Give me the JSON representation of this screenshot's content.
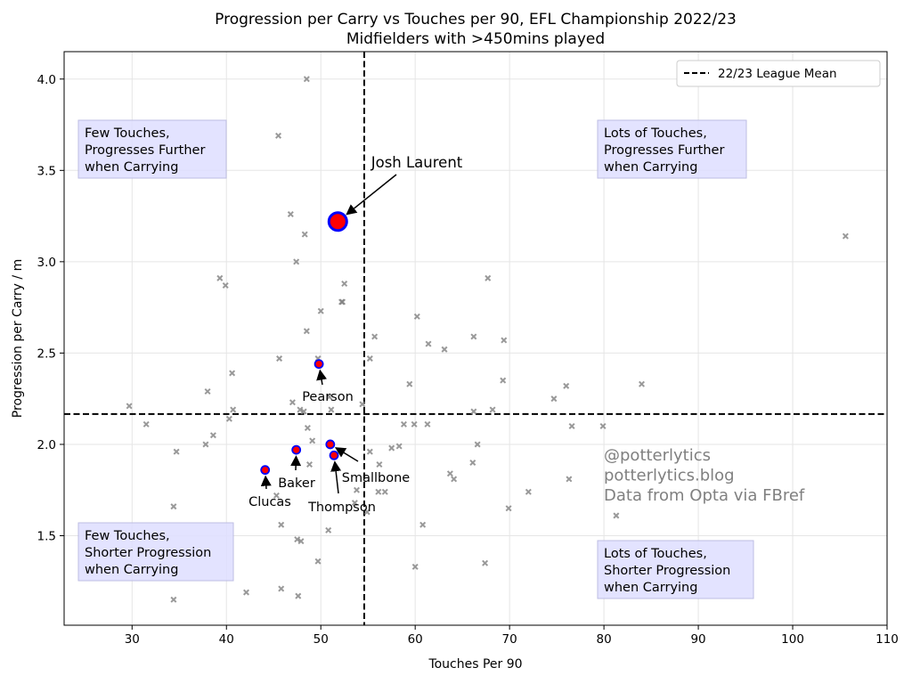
{
  "chart_data": {
    "type": "scatter",
    "title": "Progression per Carry vs Touches per 90, EFL Championship 2022/23",
    "subtitle": "Midfielders with >450mins played",
    "xlabel": "Touches Per 90",
    "ylabel": "Progression per Carry / m",
    "xlim": [
      22.8,
      110
    ],
    "ylim": [
      1.01,
      4.15
    ],
    "xticks": [
      30,
      40,
      50,
      60,
      70,
      80,
      90,
      100,
      110
    ],
    "yticks": [
      1.5,
      2.0,
      2.5,
      3.0,
      3.5,
      4.0
    ],
    "ytick_labels": [
      "1.5",
      "2.0",
      "2.5",
      "3.0",
      "3.5",
      "4.0"
    ],
    "grid": true,
    "legend": {
      "placement": "top-right",
      "entries": [
        "22/23 League Mean"
      ]
    },
    "mean_x": 54.6,
    "mean_y": 2.166,
    "colors": {
      "others": "#808080",
      "highlight_fill": "#ff0000",
      "highlight_edge": "#0000ff",
      "quadrant_box": "#e0e0ff"
    },
    "others": [
      [
        48.5,
        4.0
      ],
      [
        45.5,
        3.69
      ],
      [
        46.8,
        3.26
      ],
      [
        48.3,
        3.15
      ],
      [
        47.4,
        3.0
      ],
      [
        39.3,
        2.91
      ],
      [
        39.9,
        2.87
      ],
      [
        52.5,
        2.88
      ],
      [
        52.3,
        2.78
      ],
      [
        52.2,
        2.78
      ],
      [
        50.0,
        2.73
      ],
      [
        48.5,
        2.62
      ],
      [
        45.6,
        2.47
      ],
      [
        49.7,
        2.47
      ],
      [
        55.2,
        2.47
      ],
      [
        55.7,
        2.59
      ],
      [
        60.2,
        2.7
      ],
      [
        61.4,
        2.55
      ],
      [
        63.1,
        2.52
      ],
      [
        66.2,
        2.59
      ],
      [
        67.7,
        2.91
      ],
      [
        69.4,
        2.57
      ],
      [
        69.3,
        2.35
      ],
      [
        40.6,
        2.39
      ],
      [
        38.0,
        2.29
      ],
      [
        29.7,
        2.21
      ],
      [
        31.5,
        2.11
      ],
      [
        40.7,
        2.19
      ],
      [
        40.3,
        2.14
      ],
      [
        47.0,
        2.23
      ],
      [
        47.8,
        2.19
      ],
      [
        48.2,
        2.18
      ],
      [
        50.9,
        2.26
      ],
      [
        51.1,
        2.19
      ],
      [
        54.4,
        2.22
      ],
      [
        59.4,
        2.33
      ],
      [
        58.8,
        2.11
      ],
      [
        59.9,
        2.11
      ],
      [
        61.3,
        2.11
      ],
      [
        66.2,
        2.18
      ],
      [
        68.2,
        2.19
      ],
      [
        74.7,
        2.25
      ],
      [
        76.0,
        2.32
      ],
      [
        76.6,
        2.1
      ],
      [
        79.9,
        2.1
      ],
      [
        84.0,
        2.33
      ],
      [
        105.6,
        3.14
      ],
      [
        48.6,
        2.09
      ],
      [
        49.1,
        2.02
      ],
      [
        38.6,
        2.05
      ],
      [
        37.8,
        2.0
      ],
      [
        34.7,
        1.96
      ],
      [
        48.8,
        1.89
      ],
      [
        55.2,
        1.96
      ],
      [
        56.2,
        1.89
      ],
      [
        57.5,
        1.98
      ],
      [
        58.3,
        1.99
      ],
      [
        63.7,
        1.84
      ],
      [
        64.1,
        1.81
      ],
      [
        66.1,
        1.9
      ],
      [
        66.6,
        2.0
      ],
      [
        53.8,
        1.75
      ],
      [
        56.1,
        1.74
      ],
      [
        56.8,
        1.74
      ],
      [
        53.6,
        1.68
      ],
      [
        72.0,
        1.74
      ],
      [
        76.3,
        1.81
      ],
      [
        69.9,
        1.65
      ],
      [
        34.4,
        1.66
      ],
      [
        45.8,
        1.56
      ],
      [
        60.8,
        1.56
      ],
      [
        50.8,
        1.53
      ],
      [
        47.5,
        1.48
      ],
      [
        47.9,
        1.47
      ],
      [
        81.3,
        1.61
      ],
      [
        49.7,
        1.36
      ],
      [
        60.0,
        1.33
      ],
      [
        67.4,
        1.35
      ],
      [
        45.8,
        1.21
      ],
      [
        42.1,
        1.19
      ],
      [
        47.6,
        1.17
      ],
      [
        34.4,
        1.15
      ],
      [
        45.3,
        1.72
      ],
      [
        54.9,
        1.63
      ]
    ],
    "highlighted": [
      {
        "name": "Josh Laurent",
        "x": 51.8,
        "y": 3.22,
        "major": true
      },
      {
        "name": "Pearson",
        "x": 49.8,
        "y": 2.44
      },
      {
        "name": "Baker",
        "x": 47.4,
        "y": 1.97
      },
      {
        "name": "Smallbone",
        "x": 51.0,
        "y": 2.0
      },
      {
        "name": "Thompson",
        "x": 51.4,
        "y": 1.94
      },
      {
        "name": "Clucas",
        "x": 44.1,
        "y": 1.86
      }
    ],
    "quadrant_labels": [
      [
        "Few Touches,",
        "Progresses Further",
        "when Carrying"
      ],
      [
        "Lots of Touches,",
        "Progresses Further",
        "when Carrying"
      ],
      [
        "Few Touches,",
        "Shorter Progression",
        "when Carrying"
      ],
      [
        "Lots of Touches,",
        "Shorter Progression",
        "when Carrying"
      ]
    ],
    "credits": [
      "@potterlytics",
      "potterlytics.blog",
      "Data from Opta via FBref"
    ]
  }
}
